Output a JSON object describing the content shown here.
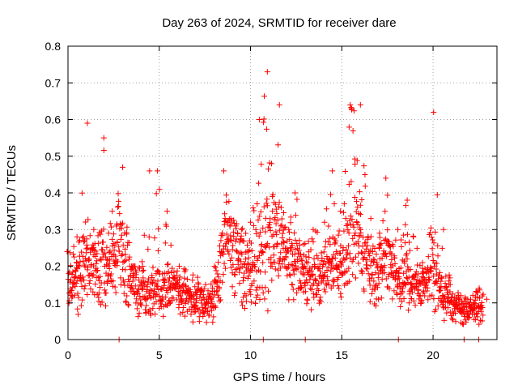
{
  "chart_data": {
    "type": "scatter",
    "title": "Day 263 of 2024, SRMTID for receiver dare",
    "xlabel": "GPS time / hours",
    "ylabel": "SRMTID / TECUs",
    "xlim": [
      0,
      23.5
    ],
    "ylim": [
      0,
      0.8
    ],
    "xticks": [
      0,
      5,
      10,
      15,
      20
    ],
    "xtick_labels": [
      "0",
      "5",
      "10",
      "15",
      "20"
    ],
    "yticks": [
      0,
      0.1,
      0.2,
      0.3,
      0.4,
      0.5,
      0.6,
      0.7,
      0.8
    ],
    "ytick_labels": [
      "0",
      "0.1",
      "0.2",
      "0.3",
      "0.4",
      "0.5",
      "0.6",
      "0.7",
      "0.8"
    ],
    "grid": true,
    "marker": "plus",
    "color": "#ff0000",
    "series": [
      {
        "name": "SRMTID",
        "envelope_hours": [
          0.0,
          0.5,
          1.0,
          1.5,
          2.0,
          2.5,
          3.0,
          3.5,
          4.0,
          4.5,
          5.0,
          5.5,
          6.0,
          6.5,
          7.0,
          7.5,
          8.0,
          8.5,
          9.0,
          9.5,
          10.0,
          10.5,
          11.0,
          11.5,
          12.0,
          12.5,
          13.0,
          13.5,
          14.0,
          14.5,
          15.0,
          15.5,
          16.0,
          16.5,
          17.0,
          17.5,
          18.0,
          18.5,
          19.0,
          19.5,
          20.0,
          20.5,
          21.0,
          21.5,
          22.0,
          22.5,
          23.0
        ],
        "envelope_typical": [
          0.15,
          0.16,
          0.2,
          0.2,
          0.2,
          0.23,
          0.24,
          0.16,
          0.13,
          0.13,
          0.14,
          0.14,
          0.13,
          0.12,
          0.11,
          0.1,
          0.1,
          0.25,
          0.27,
          0.2,
          0.17,
          0.22,
          0.25,
          0.26,
          0.22,
          0.2,
          0.17,
          0.16,
          0.17,
          0.22,
          0.2,
          0.25,
          0.27,
          0.2,
          0.17,
          0.24,
          0.17,
          0.16,
          0.14,
          0.14,
          0.2,
          0.12,
          0.09,
          0.08,
          0.08,
          0.09,
          0.08
        ],
        "envelope_max": [
          0.24,
          0.28,
          0.59,
          0.3,
          0.55,
          0.35,
          0.47,
          0.2,
          0.2,
          0.46,
          0.46,
          0.35,
          0.2,
          0.19,
          0.17,
          0.15,
          0.2,
          0.46,
          0.33,
          0.3,
          0.32,
          0.6,
          0.73,
          0.64,
          0.3,
          0.4,
          0.26,
          0.3,
          0.32,
          0.46,
          0.35,
          0.64,
          0.64,
          0.33,
          0.29,
          0.44,
          0.3,
          0.38,
          0.28,
          0.21,
          0.62,
          0.3,
          0.15,
          0.12,
          0.11,
          0.14,
          0.11
        ],
        "envelope_min": [
          0.08,
          0.05,
          0.08,
          0.1,
          0.05,
          0.1,
          0.08,
          0.06,
          0.05,
          0.04,
          0.06,
          0.05,
          0.05,
          0.04,
          0.04,
          0.04,
          0.04,
          0.1,
          0.12,
          0.08,
          0.05,
          0.05,
          0.07,
          0.12,
          0.1,
          0.1,
          0.08,
          0.07,
          0.08,
          0.1,
          0.1,
          0.11,
          0.12,
          0.1,
          0.07,
          0.12,
          0.08,
          0.06,
          0.06,
          0.06,
          0.05,
          0.05,
          0.03,
          0.03,
          0.04,
          0.03,
          0.03
        ],
        "zero_values_at_hours": [
          2.8,
          10.7,
          13.0,
          18.1,
          21.7,
          22.5
        ]
      }
    ]
  }
}
